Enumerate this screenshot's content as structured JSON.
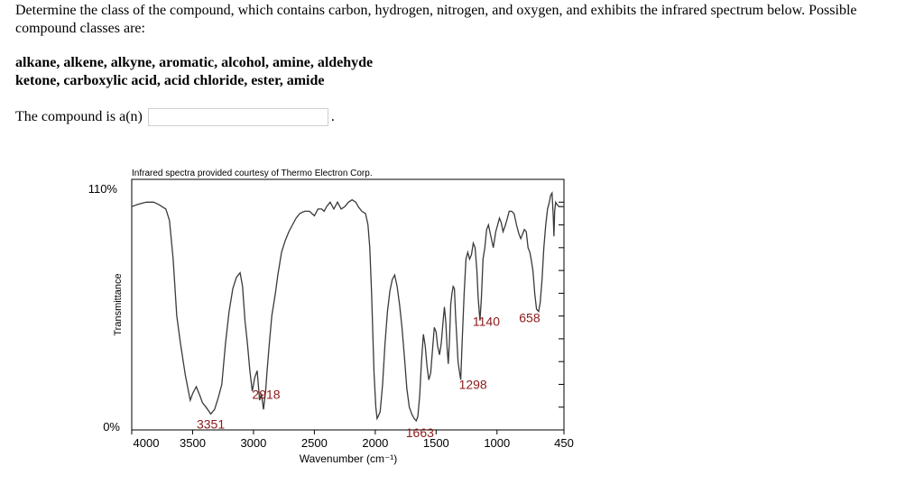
{
  "question": {
    "text": "Determine the class of the compound, which contains carbon, hydrogen, nitrogen, and oxygen, and exhibits the infrared spectrum below. Possible compound classes are:",
    "classes_line1": "alkane, alkene, alkyne, aromatic, alcohol, amine, aldehyde",
    "classes_line2": "ketone, carboxylic acid, acid chloride, ester, amide",
    "prompt": "The compound is a(n)",
    "answer_value": "",
    "answer_period": "."
  },
  "chart_data": {
    "type": "line",
    "credit": "Infrared spectra provided courtesy of Thermo Electron Corp.",
    "xlabel": "Wavenumber (cm⁻¹)",
    "ylabel": "Transmittance",
    "xlim": [
      4000,
      450
    ],
    "ylim": [
      0,
      110
    ],
    "x_ticks": [
      "4000",
      "3500",
      "3000",
      "2500",
      "2000",
      "1500",
      "1000",
      "450"
    ],
    "y_ticks": [
      "110%",
      "0%"
    ],
    "grid": false,
    "series": [
      {
        "points": [
          [
            4000,
            98
          ],
          [
            3950,
            99
          ],
          [
            3880,
            100
          ],
          [
            3820,
            100
          ],
          [
            3780,
            99
          ],
          [
            3720,
            97
          ],
          [
            3690,
            92
          ],
          [
            3660,
            75
          ],
          [
            3630,
            50
          ],
          [
            3600,
            38
          ],
          [
            3560,
            24
          ],
          [
            3520,
            13
          ],
          [
            3500,
            16
          ],
          [
            3470,
            19
          ],
          [
            3440,
            15
          ],
          [
            3420,
            12
          ],
          [
            3390,
            10
          ],
          [
            3351,
            7
          ],
          [
            3320,
            9
          ],
          [
            3290,
            14
          ],
          [
            3260,
            20
          ],
          [
            3230,
            38
          ],
          [
            3200,
            52
          ],
          [
            3170,
            62
          ],
          [
            3140,
            67
          ],
          [
            3110,
            69
          ],
          [
            3090,
            63
          ],
          [
            3070,
            48
          ],
          [
            3050,
            38
          ],
          [
            3030,
            26
          ],
          [
            3010,
            17
          ],
          [
            2990,
            23
          ],
          [
            2970,
            26
          ],
          [
            2950,
            13
          ],
          [
            2935,
            16
          ],
          [
            2918,
            9
          ],
          [
            2900,
            17
          ],
          [
            2890,
            25
          ],
          [
            2870,
            38
          ],
          [
            2850,
            50
          ],
          [
            2820,
            60
          ],
          [
            2800,
            68
          ],
          [
            2770,
            78
          ],
          [
            2740,
            83
          ],
          [
            2710,
            87
          ],
          [
            2680,
            90
          ],
          [
            2650,
            93
          ],
          [
            2620,
            95
          ],
          [
            2580,
            96
          ],
          [
            2540,
            96
          ],
          [
            2500,
            94
          ],
          [
            2470,
            97
          ],
          [
            2440,
            97
          ],
          [
            2420,
            96
          ],
          [
            2400,
            98
          ],
          [
            2370,
            100
          ],
          [
            2340,
            97
          ],
          [
            2310,
            100
          ],
          [
            2280,
            97
          ],
          [
            2250,
            98
          ],
          [
            2220,
            100
          ],
          [
            2190,
            101
          ],
          [
            2160,
            100
          ],
          [
            2140,
            98
          ],
          [
            2110,
            96
          ],
          [
            2080,
            95
          ],
          [
            2060,
            90
          ],
          [
            2045,
            80
          ],
          [
            2030,
            60
          ],
          [
            2010,
            25
          ],
          [
            1995,
            10
          ],
          [
            1985,
            5
          ],
          [
            1975,
            6
          ],
          [
            1960,
            8
          ],
          [
            1940,
            20
          ],
          [
            1920,
            38
          ],
          [
            1900,
            52
          ],
          [
            1880,
            61
          ],
          [
            1860,
            66
          ],
          [
            1840,
            68
          ],
          [
            1820,
            63
          ],
          [
            1800,
            55
          ],
          [
            1780,
            45
          ],
          [
            1760,
            32
          ],
          [
            1740,
            18
          ],
          [
            1720,
            10
          ],
          [
            1700,
            7
          ],
          [
            1680,
            5
          ],
          [
            1663,
            4
          ],
          [
            1650,
            6
          ],
          [
            1635,
            15
          ],
          [
            1620,
            30
          ],
          [
            1605,
            42
          ],
          [
            1590,
            37
          ],
          [
            1575,
            28
          ],
          [
            1560,
            22
          ],
          [
            1545,
            25
          ],
          [
            1530,
            35
          ],
          [
            1515,
            45
          ],
          [
            1500,
            43
          ],
          [
            1488,
            37
          ],
          [
            1472,
            33
          ],
          [
            1458,
            38
          ],
          [
            1444,
            47
          ],
          [
            1432,
            54
          ],
          [
            1420,
            47
          ],
          [
            1410,
            36
          ],
          [
            1400,
            29
          ],
          [
            1390,
            40
          ],
          [
            1380,
            55
          ],
          [
            1370,
            60
          ],
          [
            1360,
            63
          ],
          [
            1350,
            62
          ],
          [
            1340,
            50
          ],
          [
            1330,
            40
          ],
          [
            1320,
            30
          ],
          [
            1310,
            26
          ],
          [
            1298,
            22
          ],
          [
            1285,
            40
          ],
          [
            1270,
            60
          ],
          [
            1255,
            75
          ],
          [
            1240,
            78
          ],
          [
            1225,
            75
          ],
          [
            1210,
            77
          ],
          [
            1195,
            82
          ],
          [
            1180,
            80
          ],
          [
            1165,
            70
          ],
          [
            1155,
            58
          ],
          [
            1140,
            48
          ],
          [
            1128,
            58
          ],
          [
            1115,
            75
          ],
          [
            1100,
            80
          ],
          [
            1085,
            88
          ],
          [
            1070,
            90
          ],
          [
            1050,
            85
          ],
          [
            1030,
            80
          ],
          [
            1010,
            87
          ],
          [
            995,
            90
          ],
          [
            980,
            93
          ],
          [
            965,
            91
          ],
          [
            950,
            87
          ],
          [
            930,
            90
          ],
          [
            915,
            93
          ],
          [
            900,
            96
          ],
          [
            880,
            96
          ],
          [
            860,
            95
          ],
          [
            840,
            90
          ],
          [
            820,
            86
          ],
          [
            805,
            84
          ],
          [
            790,
            86
          ],
          [
            775,
            88
          ],
          [
            760,
            87
          ],
          [
            745,
            80
          ],
          [
            730,
            78
          ],
          [
            720,
            75
          ],
          [
            705,
            70
          ],
          [
            690,
            60
          ],
          [
            675,
            53
          ],
          [
            658,
            52
          ],
          [
            645,
            56
          ],
          [
            630,
            66
          ],
          [
            615,
            80
          ],
          [
            600,
            90
          ],
          [
            585,
            97
          ],
          [
            570,
            100
          ],
          [
            560,
            103
          ],
          [
            548,
            104
          ],
          [
            538,
            94
          ],
          [
            532,
            85
          ],
          [
            526,
            96
          ],
          [
            518,
            100
          ],
          [
            508,
            99
          ],
          [
            490,
            98
          ],
          [
            470,
            98
          ],
          [
            450,
            98
          ]
        ]
      }
    ],
    "annotations": [
      {
        "x": 3351,
        "label": "3351"
      },
      {
        "x": 2918,
        "label": "2918"
      },
      {
        "x": 1663,
        "label": "1663"
      },
      {
        "x": 1298,
        "label": "1298"
      },
      {
        "x": 1140,
        "label": "1140"
      },
      {
        "x": 658,
        "label": "658"
      }
    ],
    "colors": {
      "line": "#3a3a3a",
      "annotation": "#8b1a1a",
      "axis": "#000000"
    }
  }
}
